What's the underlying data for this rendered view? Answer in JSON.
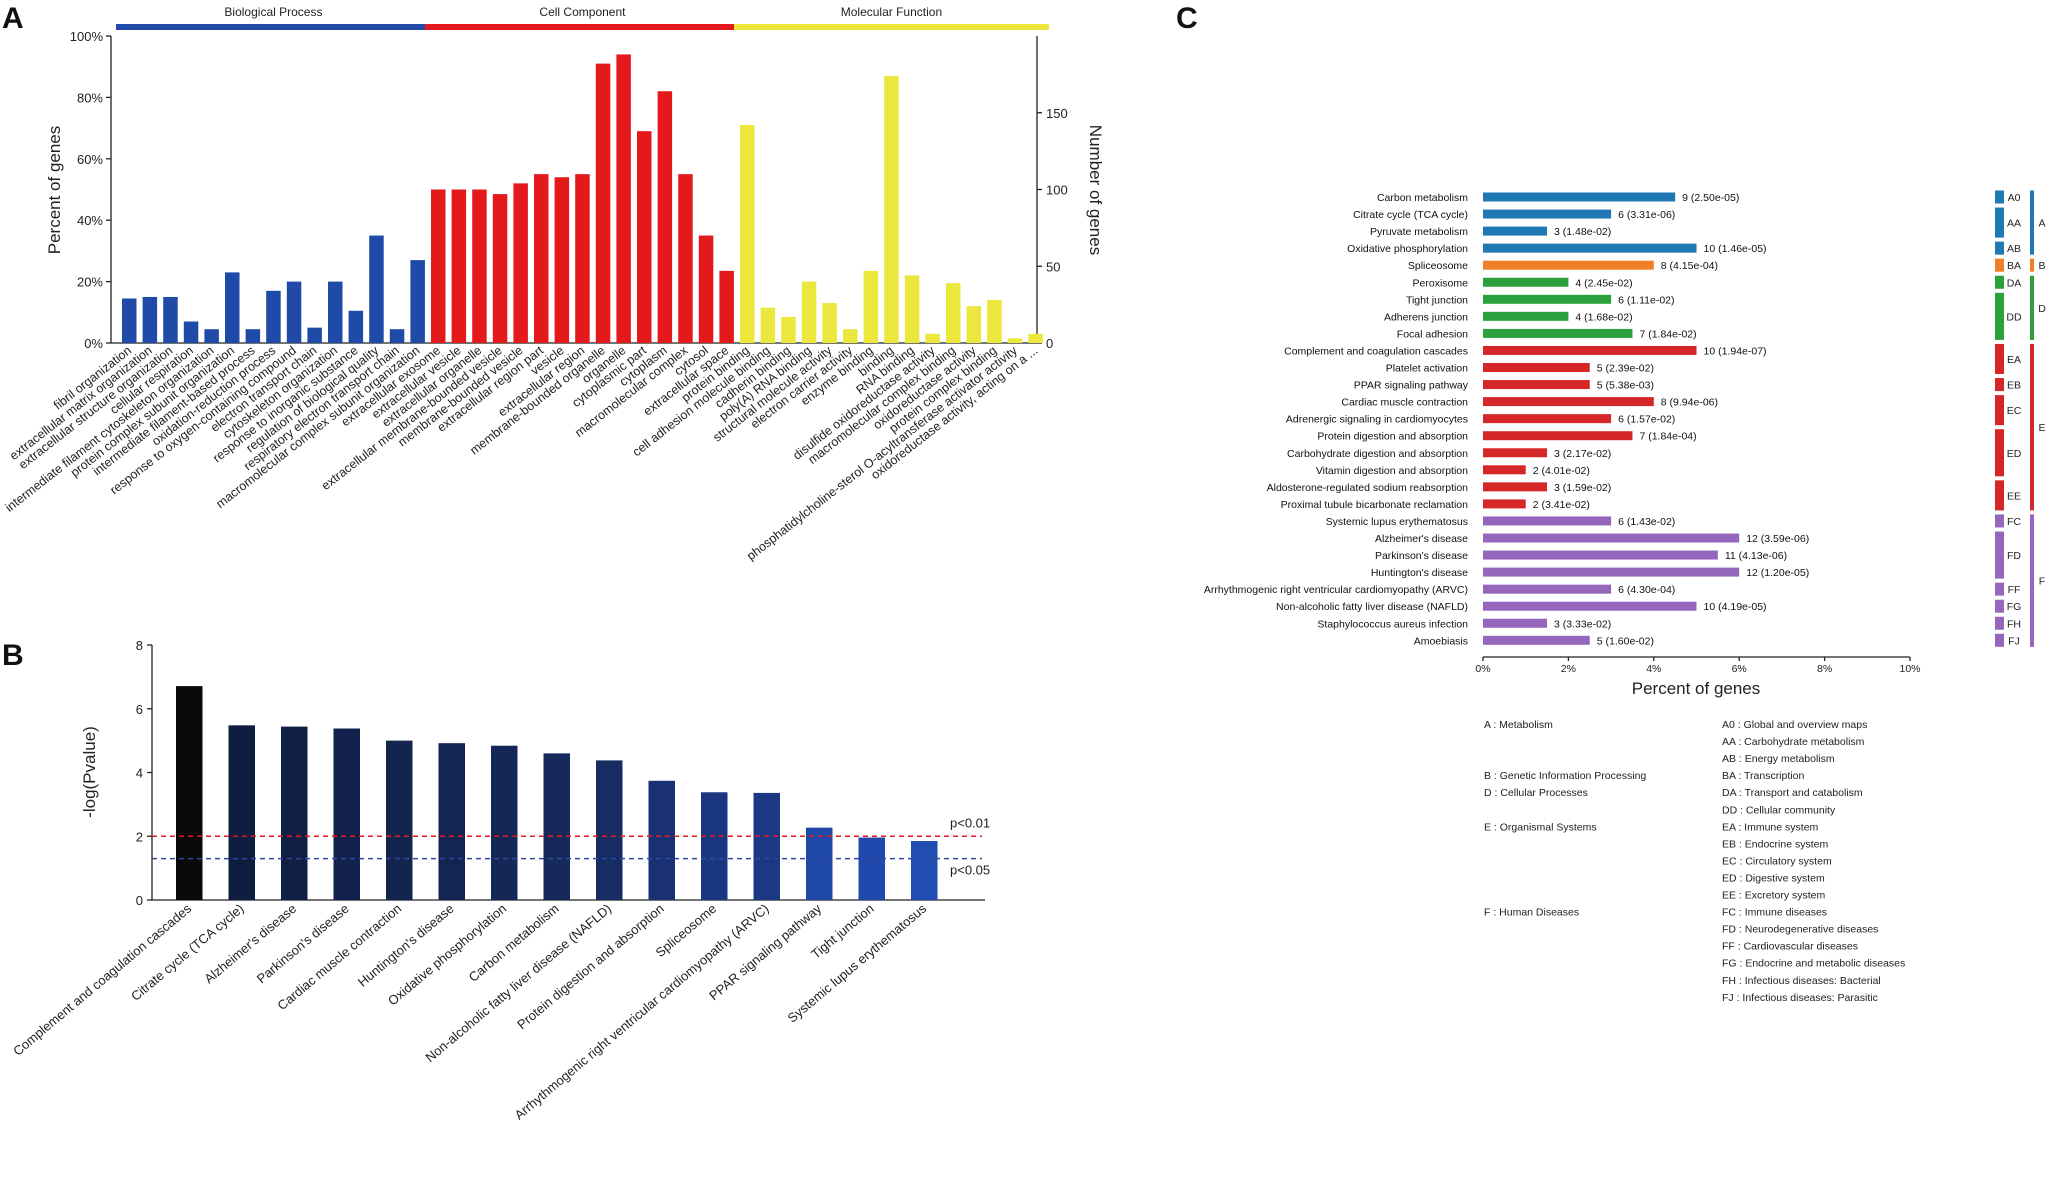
{
  "chart_data": [
    {
      "panel": "A",
      "type": "bar",
      "ylabel": "Percent of genes",
      "ylabel_right": "Number of genes",
      "yticks": [
        "0%",
        "20%",
        "40%",
        "60%",
        "80%",
        "100%"
      ],
      "yticks_right": [
        "0",
        "50",
        "100",
        "150"
      ],
      "ylim": [
        0,
        100
      ],
      "ylim_right": [
        0,
        200
      ],
      "groups": [
        {
          "name": "Biological Process",
          "color": "#1f4aa8",
          "categories": [
            "fibril organization",
            "extracellular matrix organization",
            "extracellular structure organization",
            "cellular respiration",
            "intermediate filament cytoskeleton organization",
            "protein complex subunit organization",
            "intermediate filament-based process",
            "oxidation-reduction process",
            "response to oxygen-containing compound",
            "electron transport chain",
            "cytoskeleton organization",
            "response to inorganic substance",
            "regulation of biological quality",
            "respiratory electron transport chain",
            "macromolecular complex subunit organization"
          ],
          "values": [
            14.5,
            15,
            15,
            7,
            4.5,
            23,
            4.5,
            17,
            20,
            5,
            20,
            10.5,
            35,
            4.5,
            27
          ]
        },
        {
          "name": "Cell Component",
          "color": "#e4191c",
          "categories": [
            "extracellular exosome",
            "extracellular vesicle",
            "extracellular organelle",
            "extracellular membrane-bounded vesicle",
            "membrane-bounded vesicle",
            "extracellular region part",
            "vesicle",
            "extracellular region",
            "membrane-bounded organelle",
            "organelle",
            "cytoplasmic part",
            "cytoplasm",
            "macromolecular complex",
            "cytosol",
            "extracellular space"
          ],
          "values": [
            50,
            50,
            50,
            48.5,
            52,
            55,
            54,
            55,
            91,
            94,
            69,
            82,
            55,
            35,
            23.5
          ]
        },
        {
          "name": "Molecular Function",
          "color": "#ebe73c",
          "categories": [
            "protein binding",
            "cell adhesion molecule binding",
            "cadherin binding",
            "poly(A) RNA binding",
            "structural molecule activity",
            "electron carrier activity",
            "enzyme binding",
            "binding",
            "RNA binding",
            "disulfide oxidoreductase activity",
            "macromolecular complex binding",
            "oxidoreductase activity",
            "protein complex binding",
            "phosphatidylcholine-sterol O-acyltransferase activator activity",
            "oxidoreductase activity, acting on a ..."
          ],
          "values": [
            71,
            11.5,
            8.5,
            20,
            13,
            4.5,
            23.5,
            87,
            22,
            3,
            19.5,
            12,
            14,
            1.5,
            3
          ]
        }
      ]
    },
    {
      "panel": "B",
      "type": "bar",
      "ylabel": "-log(Pvalue)",
      "yticks": [
        "0",
        "2",
        "4",
        "6",
        "8"
      ],
      "ylim": [
        0,
        8
      ],
      "categories": [
        "Complement and coagulation cascades",
        "Citrate cycle (TCA cycle)",
        "Alzheimer's disease",
        "Parkinson's disease",
        "Cardiac muscle contraction",
        "Huntington's disease",
        "Oxidative phosphorylation",
        "Carbon metabolism",
        "Non-alcoholic fatty liver disease (NAFLD)",
        "Protein digestion and absorption",
        "Spliceosome",
        "Arrhythmogenic right ventricular cardiomyopathy (ARVC)",
        "PPAR signaling pathway",
        "Tight junction",
        "Systemic lupus erythematosus"
      ],
      "values": [
        6.71,
        5.48,
        5.44,
        5.38,
        5.0,
        4.92,
        4.84,
        4.6,
        4.38,
        3.74,
        3.38,
        3.36,
        2.27,
        1.96,
        1.85
      ],
      "colors": [
        "#0a0a0a",
        "#0f1d40",
        "#111f46",
        "#12214b",
        "#13244f",
        "#142552",
        "#152756",
        "#16295b",
        "#172c63",
        "#1a3274",
        "#1a3680",
        "#1b3884",
        "#1f48a8",
        "#2149ad",
        "#224cb2"
      ],
      "thresholds": [
        {
          "label": "p<0.01",
          "value": 2,
          "color": "#e4191c"
        },
        {
          "label": "p<0.05",
          "value": 1.3,
          "color": "#2b4a9e"
        }
      ]
    },
    {
      "panel": "C",
      "type": "bar",
      "orientation": "horizontal",
      "xlabel": "Percent of genes",
      "xticks": [
        "0%",
        "2%",
        "4%",
        "6%",
        "8%",
        "10%"
      ],
      "xlim": [
        0,
        10
      ],
      "rows": [
        {
          "label": "Carbon metabolism",
          "value": 4.5,
          "annot": "9 (2.50e-05)",
          "color": "#1f77b4"
        },
        {
          "label": "Citrate cycle (TCA cycle)",
          "value": 3.0,
          "annot": "6 (3.31e-06)",
          "color": "#1f77b4"
        },
        {
          "label": "Pyruvate metabolism",
          "value": 1.5,
          "annot": "3 (1.48e-02)",
          "color": "#1f77b4"
        },
        {
          "label": "Oxidative phosphorylation",
          "value": 5.0,
          "annot": "10 (1.46e-05)",
          "color": "#1f77b4"
        },
        {
          "label": "Spliceosome",
          "value": 4.0,
          "annot": "8 (4.15e-04)",
          "color": "#f07f2a"
        },
        {
          "label": "Peroxisome",
          "value": 2.0,
          "annot": "4 (2.45e-02)",
          "color": "#2ca03c"
        },
        {
          "label": "Tight junction",
          "value": 3.0,
          "annot": "6 (1.11e-02)",
          "color": "#2ca03c"
        },
        {
          "label": "Adherens junction",
          "value": 2.0,
          "annot": "4 (1.68e-02)",
          "color": "#2ca03c"
        },
        {
          "label": "Focal adhesion",
          "value": 3.5,
          "annot": "7 (1.84e-02)",
          "color": "#2ca03c"
        },
        {
          "label": "Complement and coagulation cascades",
          "value": 5.0,
          "annot": "10 (1.94e-07)",
          "color": "#d62728"
        },
        {
          "label": "Platelet activation",
          "value": 2.5,
          "annot": "5 (2.39e-02)",
          "color": "#d62728"
        },
        {
          "label": "PPAR signaling pathway",
          "value": 2.5,
          "annot": "5 (5.38e-03)",
          "color": "#d62728"
        },
        {
          "label": "Cardiac muscle contraction",
          "value": 4.0,
          "annot": "8 (9.94e-06)",
          "color": "#d62728"
        },
        {
          "label": "Adrenergic signaling in cardiomyocytes",
          "value": 3.0,
          "annot": "6 (1.57e-02)",
          "color": "#d62728"
        },
        {
          "label": "Protein digestion and absorption",
          "value": 3.5,
          "annot": "7 (1.84e-04)",
          "color": "#d62728"
        },
        {
          "label": "Carbohydrate digestion and absorption",
          "value": 1.5,
          "annot": "3 (2.17e-02)",
          "color": "#d62728"
        },
        {
          "label": "Vitamin digestion and absorption",
          "value": 1.0,
          "annot": "2 (4.01e-02)",
          "color": "#d62728"
        },
        {
          "label": "Aldosterone-regulated sodium reabsorption",
          "value": 1.5,
          "annot": "3 (1.59e-02)",
          "color": "#d62728"
        },
        {
          "label": "Proximal tubule bicarbonate reclamation",
          "value": 1.0,
          "annot": "2 (3.41e-02)",
          "color": "#d62728"
        },
        {
          "label": "Systemic lupus erythematosus",
          "value": 3.0,
          "annot": "6 (1.43e-02)",
          "color": "#9467bd"
        },
        {
          "label": "Alzheimer's disease",
          "value": 6.0,
          "annot": "12 (3.59e-06)",
          "color": "#9467bd"
        },
        {
          "label": "Parkinson's disease",
          "value": 5.5,
          "annot": "11 (4.13e-06)",
          "color": "#9467bd"
        },
        {
          "label": "Huntington's disease",
          "value": 6.0,
          "annot": "12 (1.20e-05)",
          "color": "#9467bd"
        },
        {
          "label": "Arrhythmogenic right ventricular cardiomyopathy (ARVC)",
          "value": 3.0,
          "annot": "6 (4.30e-04)",
          "color": "#9467bd"
        },
        {
          "label": "Non-alcoholic fatty liver disease (NAFLD)",
          "value": 5.0,
          "annot": "10 (4.19e-05)",
          "color": "#9467bd"
        },
        {
          "label": "Staphylococcus aureus infection",
          "value": 1.5,
          "annot": "3 (3.33e-02)",
          "color": "#9467bd"
        },
        {
          "label": "Amoebiasis",
          "value": 2.5,
          "annot": "5 (1.60e-02)",
          "color": "#9467bd"
        }
      ],
      "subgroups": [
        {
          "code": "A0",
          "rows": [
            0,
            0
          ],
          "color": "#1f77b4"
        },
        {
          "code": "AA",
          "rows": [
            1,
            2
          ],
          "color": "#1f77b4"
        },
        {
          "code": "AB",
          "rows": [
            3,
            3
          ],
          "color": "#1f77b4"
        },
        {
          "code": "BA",
          "rows": [
            4,
            4
          ],
          "color": "#f07f2a"
        },
        {
          "code": "DA",
          "rows": [
            5,
            5
          ],
          "color": "#2ca03c"
        },
        {
          "code": "DD",
          "rows": [
            6,
            8
          ],
          "color": "#2ca03c"
        },
        {
          "code": "EA",
          "rows": [
            9,
            10
          ],
          "color": "#d62728"
        },
        {
          "code": "EB",
          "rows": [
            11,
            11
          ],
          "color": "#d62728"
        },
        {
          "code": "EC",
          "rows": [
            12,
            13
          ],
          "color": "#d62728"
        },
        {
          "code": "ED",
          "rows": [
            14,
            16
          ],
          "color": "#d62728"
        },
        {
          "code": "EE",
          "rows": [
            17,
            18
          ],
          "color": "#d62728"
        },
        {
          "code": "FC",
          "rows": [
            19,
            19
          ],
          "color": "#9467bd"
        },
        {
          "code": "FD",
          "rows": [
            20,
            22
          ],
          "color": "#9467bd"
        },
        {
          "code": "FF",
          "rows": [
            23,
            23
          ],
          "color": "#9467bd"
        },
        {
          "code": "FG",
          "rows": [
            24,
            24
          ],
          "color": "#9467bd"
        },
        {
          "code": "FH",
          "rows": [
            25,
            25
          ],
          "color": "#9467bd"
        },
        {
          "code": "FJ",
          "rows": [
            26,
            26
          ],
          "color": "#9467bd"
        }
      ],
      "groups": [
        {
          "code": "A",
          "rows": [
            0,
            3
          ],
          "color": "#1f77b4"
        },
        {
          "code": "B",
          "rows": [
            4,
            4
          ],
          "color": "#f07f2a"
        },
        {
          "code": "D",
          "rows": [
            5,
            8
          ],
          "color": "#2ca03c"
        },
        {
          "code": "E",
          "rows": [
            9,
            18
          ],
          "color": "#d62728"
        },
        {
          "code": "F",
          "rows": [
            19,
            26
          ],
          "color": "#9467bd"
        }
      ],
      "legend_left": [
        {
          "text": "A : Metabolism",
          "slot": 0
        },
        {
          "text": "B : Genetic Information Processing",
          "slot": 3
        },
        {
          "text": "D : Cellular Processes",
          "slot": 4
        },
        {
          "text": "E : Organismal Systems",
          "slot": 6
        },
        {
          "text": "F : Human Diseases",
          "slot": 11
        }
      ],
      "legend_right": [
        "A0 : Global and overview maps",
        "AA : Carbohydrate metabolism",
        "AB : Energy metabolism",
        "BA : Transcription",
        "DA : Transport and catabolism",
        "DD : Cellular community",
        "EA : Immune system",
        "EB : Endocrine system",
        "EC : Circulatory system",
        "ED : Digestive system",
        "EE : Excretory system",
        "FC : Immune diseases",
        "FD : Neurodegenerative diseases",
        "FF : Cardiovascular diseases",
        "FG : Endocrine and metabolic diseases",
        "FH : Infectious diseases: Bacterial",
        "FJ : Infectious diseases: Parasitic"
      ]
    }
  ],
  "panels": {
    "a": "A",
    "b": "B",
    "c": "C"
  }
}
